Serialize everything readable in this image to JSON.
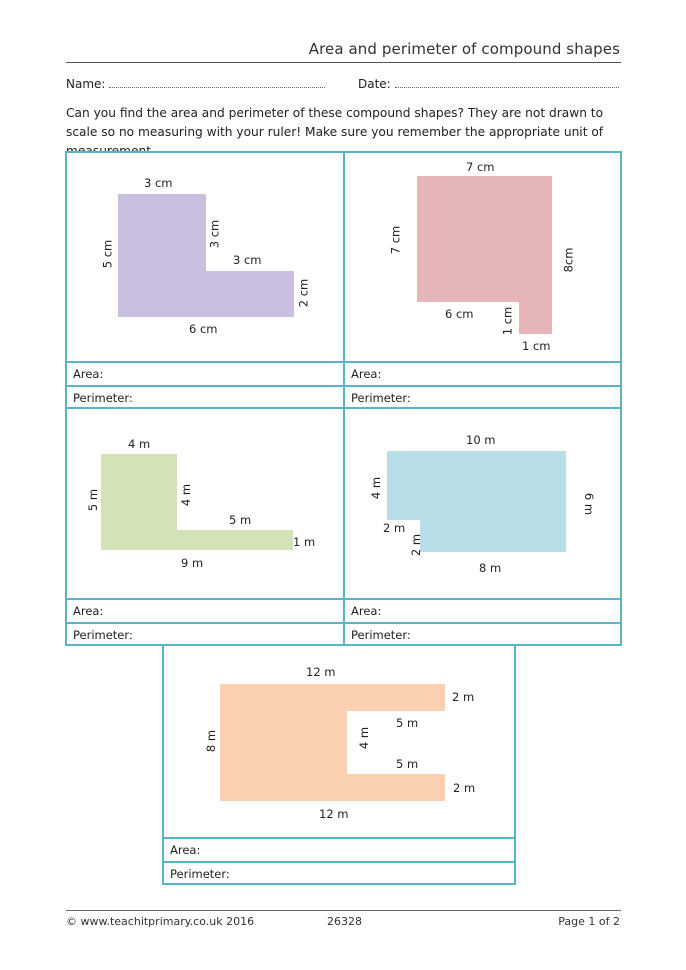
{
  "header": {
    "title": "Area and perimeter of compound shapes",
    "name_label": "Name:",
    "date_label": "Date:"
  },
  "intro": "Can you find the area and perimeter of these compound shapes? They are not drawn to scale so no measuring with your ruler!  Make sure you remember the appropriate unit of measurement.",
  "colors": {
    "border": "#5ab4c8",
    "shape1": "#c9c0e0",
    "shape2": "#e6b5b7",
    "shape3": "#d3e3b7",
    "shape4": "#b8dfe7",
    "shape5": "#fbd0b0"
  },
  "answer_labels": {
    "area": "Area:",
    "perimeter": "Perimeter:"
  },
  "shapes": [
    {
      "labels": [
        "3 cm",
        "3 cm",
        "3 cm",
        "5 cm",
        "2 cm",
        "6 cm"
      ]
    },
    {
      "labels": [
        "7 cm",
        "7 cm",
        "8cm",
        "6 cm",
        "1 cm",
        "1 cm"
      ]
    },
    {
      "labels": [
        "4 m",
        "4 m",
        "5 m",
        "5 m",
        "1 m",
        "9 m"
      ]
    },
    {
      "labels": [
        "10 m",
        "4 m",
        "6 m",
        "2 m",
        "2 m",
        "8 m"
      ]
    },
    {
      "labels": [
        "12 m",
        "2 m",
        "5 m",
        "8 m",
        "4 m",
        "5 m",
        "2 m",
        "12 m"
      ]
    }
  ],
  "footer": {
    "copyright": "© www.teachitprimary.co.uk 2016",
    "code": "26328",
    "page": "Page 1 of 2"
  }
}
